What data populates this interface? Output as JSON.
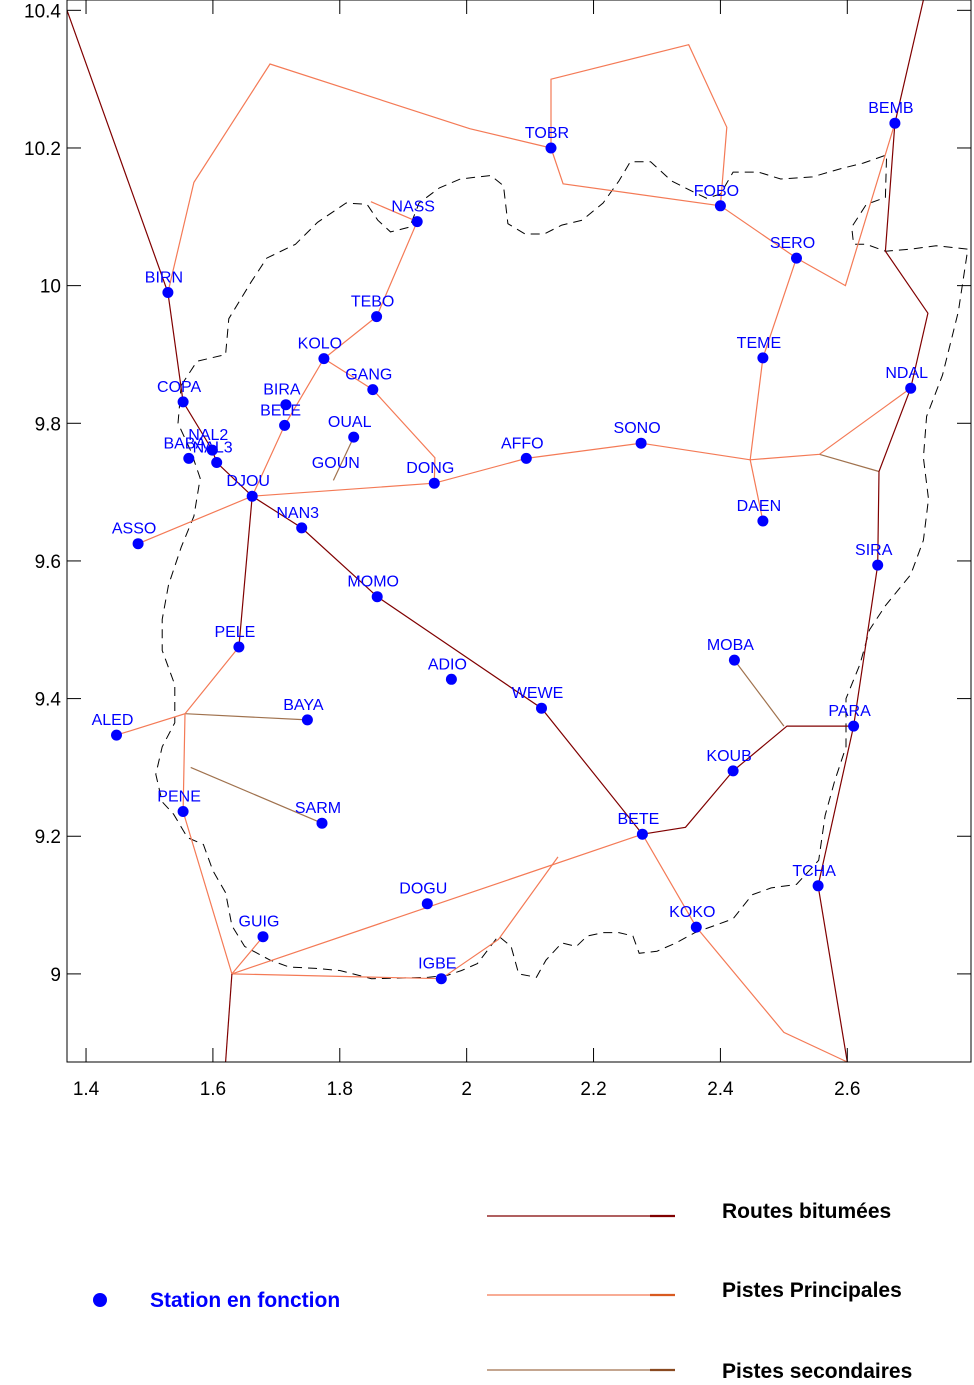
{
  "map": {
    "x_range": [
      1.37,
      2.795
    ],
    "y_range": [
      8.872,
      10.415
    ],
    "x_ticks": [
      {
        "value": 1.4,
        "label": "1.4"
      },
      {
        "value": 1.6,
        "label": "1.6"
      },
      {
        "value": 1.8,
        "label": "1.8"
      },
      {
        "value": 2.0,
        "label": "2"
      },
      {
        "value": 2.2,
        "label": "2.2"
      },
      {
        "value": 2.4,
        "label": "2.4"
      },
      {
        "value": 2.6,
        "label": "2.6"
      }
    ],
    "y_ticks": [
      {
        "value": 9.0,
        "label": "9"
      },
      {
        "value": 9.2,
        "label": "9.2"
      },
      {
        "value": 9.4,
        "label": "9.4"
      },
      {
        "value": 9.6,
        "label": "9.6"
      },
      {
        "value": 9.8,
        "label": "9.8"
      },
      {
        "value": 10.0,
        "label": "10"
      },
      {
        "value": 10.2,
        "label": "10.2"
      },
      {
        "value": 10.4,
        "label": "10.4"
      }
    ],
    "colors": {
      "station": "#0000ff",
      "routes_bitumees": "#800000",
      "pistes_principales": "#f47a56",
      "pistes_secondaires": "#a0724e",
      "boundary": "#000000"
    },
    "stations": [
      {
        "name": "BEMB",
        "lon": 2.675,
        "lat": 10.236
      },
      {
        "name": "TOBR",
        "lon": 2.133,
        "lat": 10.2
      },
      {
        "name": "FOBO",
        "lon": 2.4,
        "lat": 10.116
      },
      {
        "name": "NASS",
        "lon": 1.922,
        "lat": 10.093
      },
      {
        "name": "SERO",
        "lon": 2.52,
        "lat": 10.04
      },
      {
        "name": "BIRN",
        "lon": 1.529,
        "lat": 9.99
      },
      {
        "name": "TEBO",
        "lon": 1.858,
        "lat": 9.955
      },
      {
        "name": "KOLO",
        "lon": 1.775,
        "lat": 9.894
      },
      {
        "name": "TEME",
        "lon": 2.467,
        "lat": 9.895
      },
      {
        "name": "BIRA",
        "lon": 1.715,
        "lat": 9.827
      },
      {
        "name": "GANG",
        "lon": 1.852,
        "lat": 9.849
      },
      {
        "name": "COPA",
        "lon": 1.553,
        "lat": 9.831
      },
      {
        "name": "NDAL",
        "lon": 2.7,
        "lat": 9.851
      },
      {
        "name": "OUAL",
        "lon": 1.822,
        "lat": 9.78
      },
      {
        "name": "BELE",
        "lon": 1.713,
        "lat": 9.797
      },
      {
        "name": "NAL2",
        "lon": 1.599,
        "lat": 9.761
      },
      {
        "name": "SONO",
        "lon": 2.275,
        "lat": 9.771
      },
      {
        "name": "BABA",
        "lon": 1.562,
        "lat": 9.749
      },
      {
        "name": "AFFO",
        "lon": 2.094,
        "lat": 9.749
      },
      {
        "name": "NAL3",
        "lon": 1.606,
        "lat": 9.743
      },
      {
        "name": "GOUN",
        "lon": 1.8,
        "lat": 9.735,
        "no_dot": true
      },
      {
        "name": "DONG",
        "lon": 1.949,
        "lat": 9.713
      },
      {
        "name": "DJOU",
        "lon": 1.662,
        "lat": 9.694
      },
      {
        "name": "DAEN",
        "lon": 2.467,
        "lat": 9.658
      },
      {
        "name": "NAN3",
        "lon": 1.74,
        "lat": 9.648
      },
      {
        "name": "ASSO",
        "lon": 1.482,
        "lat": 9.625
      },
      {
        "name": "SIRA",
        "lon": 2.648,
        "lat": 9.594
      },
      {
        "name": "MOMO",
        "lon": 1.859,
        "lat": 9.548
      },
      {
        "name": "PELE",
        "lon": 1.641,
        "lat": 9.475
      },
      {
        "name": "MOBA",
        "lon": 2.422,
        "lat": 9.456
      },
      {
        "name": "ADIO",
        "lon": 1.976,
        "lat": 9.428
      },
      {
        "name": "WEWE",
        "lon": 2.118,
        "lat": 9.386
      },
      {
        "name": "BAYA",
        "lon": 1.749,
        "lat": 9.369
      },
      {
        "name": "PARA",
        "lon": 2.61,
        "lat": 9.36
      },
      {
        "name": "ALED",
        "lon": 1.448,
        "lat": 9.347
      },
      {
        "name": "KOUB",
        "lon": 2.42,
        "lat": 9.295
      },
      {
        "name": "PENE",
        "lon": 1.553,
        "lat": 9.236
      },
      {
        "name": "SARM",
        "lon": 1.772,
        "lat": 9.219
      },
      {
        "name": "BETE",
        "lon": 2.277,
        "lat": 9.203
      },
      {
        "name": "TCHA",
        "lon": 2.554,
        "lat": 9.128
      },
      {
        "name": "DOGU",
        "lon": 1.938,
        "lat": 9.102
      },
      {
        "name": "KOKO",
        "lon": 2.362,
        "lat": 9.068
      },
      {
        "name": "GUIG",
        "lon": 1.679,
        "lat": 9.054
      },
      {
        "name": "IGBE",
        "lon": 1.96,
        "lat": 8.993
      }
    ],
    "roads": {
      "routes_bitumees": [
        [
          [
            1.37,
            10.4
          ],
          [
            1.529,
            9.99
          ],
          [
            1.553,
            9.831
          ],
          [
            1.599,
            9.761
          ],
          [
            1.606,
            9.743
          ],
          [
            1.662,
            9.694
          ],
          [
            1.74,
            9.648
          ],
          [
            1.859,
            9.548
          ],
          [
            2.118,
            9.386
          ],
          [
            2.277,
            9.203
          ]
        ],
        [
          [
            1.662,
            9.694
          ],
          [
            1.641,
            9.475
          ]
        ],
        [
          [
            2.72,
            10.415
          ],
          [
            2.675,
            10.236
          ],
          [
            2.66,
            10.05
          ],
          [
            2.727,
            9.96
          ],
          [
            2.7,
            9.851
          ],
          [
            2.65,
            9.73
          ],
          [
            2.648,
            9.594
          ],
          [
            2.61,
            9.36
          ],
          [
            2.554,
            9.128
          ],
          [
            2.6,
            8.872
          ]
        ],
        [
          [
            1.63,
            9.0
          ],
          [
            1.62,
            8.872
          ]
        ]
      ],
      "pistes_principales": [
        [
          [
            1.529,
            9.99
          ],
          [
            1.57,
            10.15
          ],
          [
            1.69,
            10.322
          ],
          [
            2.005,
            10.228
          ],
          [
            2.133,
            10.2
          ]
        ],
        [
          [
            1.849,
            10.122
          ],
          [
            1.922,
            10.093
          ],
          [
            1.858,
            9.955
          ],
          [
            1.775,
            9.894
          ],
          [
            1.713,
            9.797
          ],
          [
            1.662,
            9.694
          ],
          [
            1.482,
            9.625
          ]
        ],
        [
          [
            1.662,
            9.694
          ],
          [
            1.949,
            9.713
          ],
          [
            2.094,
            9.749
          ],
          [
            2.275,
            9.771
          ],
          [
            2.447,
            9.747
          ],
          [
            2.556,
            9.755
          ],
          [
            2.7,
            9.851
          ]
        ],
        [
          [
            1.775,
            9.894
          ],
          [
            1.852,
            9.849
          ],
          [
            1.95,
            9.75
          ],
          [
            1.949,
            9.713
          ]
        ],
        [
          [
            2.133,
            10.2
          ],
          [
            2.152,
            10.148
          ],
          [
            2.4,
            10.116
          ],
          [
            2.52,
            10.04
          ]
        ],
        [
          [
            2.133,
            10.2
          ],
          [
            2.133,
            10.3
          ],
          [
            2.35,
            10.35
          ],
          [
            2.41,
            10.23
          ],
          [
            2.4,
            10.116
          ]
        ],
        [
          [
            2.52,
            10.04
          ],
          [
            2.597,
            10.0
          ],
          [
            2.675,
            10.236
          ]
        ],
        [
          [
            2.52,
            10.04
          ],
          [
            2.467,
            9.895
          ],
          [
            2.447,
            9.747
          ],
          [
            2.467,
            9.658
          ]
        ],
        [
          [
            1.641,
            9.475
          ],
          [
            1.556,
            9.378
          ],
          [
            1.448,
            9.347
          ]
        ],
        [
          [
            1.556,
            9.378
          ],
          [
            1.553,
            9.236
          ],
          [
            1.63,
            9.0
          ],
          [
            1.679,
            9.054
          ]
        ],
        [
          [
            1.63,
            9.0
          ],
          [
            1.96,
            8.993
          ],
          [
            2.05,
            9.05
          ],
          [
            2.144,
            9.17
          ]
        ],
        [
          [
            1.63,
            9.0
          ],
          [
            2.277,
            9.203
          ]
        ],
        [
          [
            2.277,
            9.203
          ],
          [
            2.362,
            9.068
          ],
          [
            2.5,
            8.915
          ],
          [
            2.6,
            8.872
          ]
        ]
      ],
      "pistes_secondaires": [
        [
          [
            1.822,
            9.78
          ],
          [
            1.79,
            9.717
          ]
        ],
        [
          [
            2.556,
            9.755
          ],
          [
            2.65,
            9.73
          ]
        ],
        [
          [
            1.556,
            9.378
          ],
          [
            1.749,
            9.369
          ]
        ],
        [
          [
            1.565,
            9.3
          ],
          [
            1.772,
            9.219
          ]
        ],
        [
          [
            2.422,
            9.456
          ],
          [
            2.5,
            9.36
          ]
        ]
      ],
      "routes_bitumees_extra": [
        [
          [
            2.277,
            9.203
          ],
          [
            2.345,
            9.213
          ],
          [
            2.42,
            9.295
          ],
          [
            2.505,
            9.36
          ],
          [
            2.61,
            9.36
          ]
        ]
      ]
    },
    "boundary": [
      [
        1.55,
        9.855
      ],
      [
        1.575,
        9.89
      ],
      [
        1.62,
        9.9
      ],
      [
        1.625,
        9.952
      ],
      [
        1.66,
        10.005
      ],
      [
        1.685,
        10.04
      ],
      [
        1.73,
        10.06
      ],
      [
        1.765,
        10.092
      ],
      [
        1.81,
        10.12
      ],
      [
        1.843,
        10.118
      ],
      [
        1.86,
        10.095
      ],
      [
        1.88,
        10.078
      ],
      [
        1.91,
        10.085
      ],
      [
        1.925,
        10.12
      ],
      [
        1.957,
        10.142
      ],
      [
        1.99,
        10.155
      ],
      [
        2.038,
        10.16
      ],
      [
        2.058,
        10.145
      ],
      [
        2.065,
        10.09
      ],
      [
        2.092,
        10.075
      ],
      [
        2.122,
        10.075
      ],
      [
        2.15,
        10.088
      ],
      [
        2.182,
        10.095
      ],
      [
        2.215,
        10.12
      ],
      [
        2.24,
        10.152
      ],
      [
        2.258,
        10.18
      ],
      [
        2.29,
        10.18
      ],
      [
        2.323,
        10.152
      ],
      [
        2.36,
        10.135
      ],
      [
        2.378,
        10.127
      ],
      [
        2.4,
        10.133
      ],
      [
        2.42,
        10.165
      ],
      [
        2.46,
        10.165
      ],
      [
        2.495,
        10.155
      ],
      [
        2.545,
        10.158
      ],
      [
        2.59,
        10.17
      ],
      [
        2.625,
        10.178
      ],
      [
        2.662,
        10.19
      ],
      [
        2.66,
        10.128
      ],
      [
        2.63,
        10.118
      ],
      [
        2.607,
        10.085
      ],
      [
        2.61,
        10.06
      ],
      [
        2.63,
        10.06
      ],
      [
        2.66,
        10.05
      ],
      [
        2.7,
        10.053
      ],
      [
        2.74,
        10.058
      ],
      [
        2.79,
        10.053
      ],
      [
        2.775,
        9.962
      ],
      [
        2.75,
        9.87
      ],
      [
        2.725,
        9.81
      ],
      [
        2.72,
        9.75
      ],
      [
        2.728,
        9.69
      ],
      [
        2.72,
        9.63
      ],
      [
        2.7,
        9.58
      ],
      [
        2.66,
        9.535
      ],
      [
        2.635,
        9.5
      ],
      [
        2.62,
        9.45
      ],
      [
        2.598,
        9.4
      ],
      [
        2.598,
        9.33
      ],
      [
        2.58,
        9.28
      ],
      [
        2.565,
        9.23
      ],
      [
        2.555,
        9.165
      ],
      [
        2.52,
        9.13
      ],
      [
        2.48,
        9.125
      ],
      [
        2.45,
        9.115
      ],
      [
        2.42,
        9.08
      ],
      [
        2.39,
        9.07
      ],
      [
        2.36,
        9.06
      ],
      [
        2.33,
        9.045
      ],
      [
        2.3,
        9.033
      ],
      [
        2.272,
        9.03
      ],
      [
        2.262,
        9.055
      ],
      [
        2.24,
        9.06
      ],
      [
        2.215,
        9.06
      ],
      [
        2.19,
        9.055
      ],
      [
        2.173,
        9.04
      ],
      [
        2.15,
        9.045
      ],
      [
        2.125,
        9.02
      ],
      [
        2.11,
        8.995
      ],
      [
        2.082,
        9.0
      ],
      [
        2.07,
        9.04
      ],
      [
        2.05,
        9.055
      ],
      [
        2.017,
        9.015
      ],
      [
        1.992,
        9.005
      ],
      [
        1.97,
        8.998
      ],
      [
        1.94,
        8.995
      ],
      [
        1.9,
        8.994
      ],
      [
        1.85,
        8.993
      ],
      [
        1.8,
        9.005
      ],
      [
        1.762,
        9.008
      ],
      [
        1.72,
        9.01
      ],
      [
        1.69,
        9.02
      ],
      [
        1.65,
        9.04
      ],
      [
        1.63,
        9.07
      ],
      [
        1.62,
        9.118
      ],
      [
        1.6,
        9.15
      ],
      [
        1.585,
        9.188
      ],
      [
        1.56,
        9.198
      ],
      [
        1.538,
        9.232
      ],
      [
        1.52,
        9.25
      ],
      [
        1.51,
        9.29
      ],
      [
        1.52,
        9.33
      ],
      [
        1.54,
        9.365
      ],
      [
        1.54,
        9.42
      ],
      [
        1.52,
        9.47
      ],
      [
        1.52,
        9.515
      ],
      [
        1.53,
        9.565
      ],
      [
        1.55,
        9.62
      ],
      [
        1.57,
        9.665
      ],
      [
        1.58,
        9.72
      ],
      [
        1.565,
        9.76
      ],
      [
        1.545,
        9.8
      ],
      [
        1.55,
        9.855
      ]
    ]
  },
  "legend": {
    "station_label": "Station en fonction",
    "road_labels": {
      "routes_bitumees": "Routes bitumées",
      "pistes_principales": "Pistes Principales",
      "pistes_secondaires": "Pistes secondaires"
    }
  }
}
